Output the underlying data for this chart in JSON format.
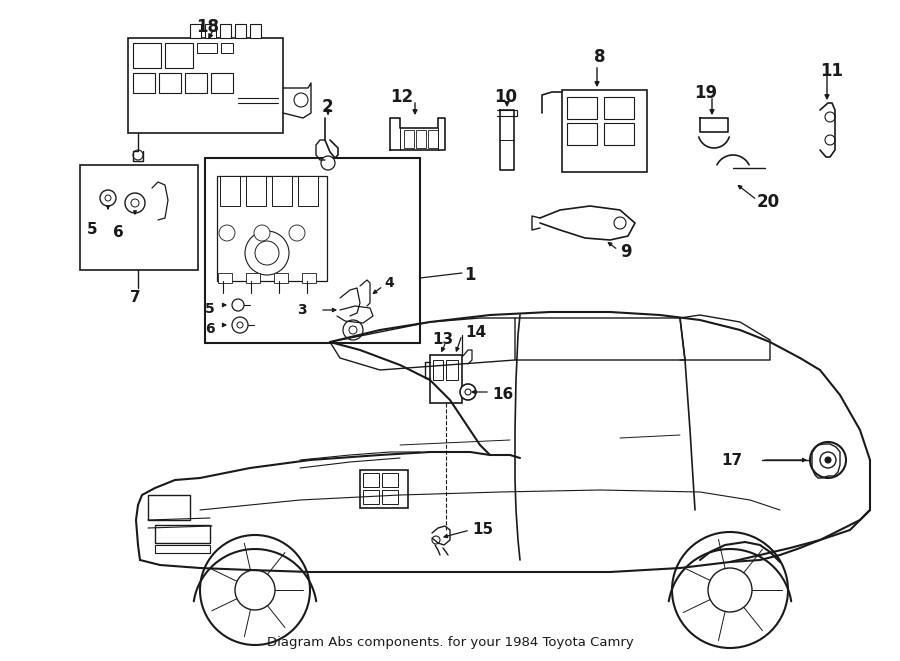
{
  "title": "Diagram Abs components. for your 1984 Toyota Camry",
  "bg_color": "#ffffff",
  "line_color": "#1a1a1a",
  "fig_width": 9.0,
  "fig_height": 6.61,
  "dpi": 100
}
